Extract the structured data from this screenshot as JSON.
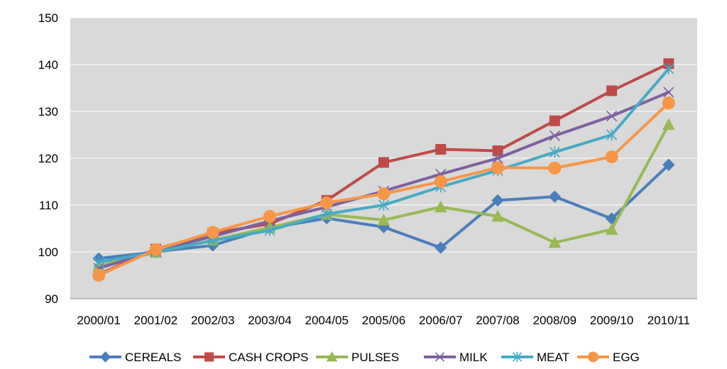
{
  "chart_data": {
    "type": "line",
    "title": "",
    "xlabel": "",
    "ylabel": "",
    "categories": [
      "2000/01",
      "2001/02",
      "2002/03",
      "2003/04",
      "2004/05",
      "2005/06",
      "2006/07",
      "2007/08",
      "2008/09",
      "2009/10",
      "2010/11"
    ],
    "ylim": [
      90,
      150
    ],
    "yticks": [
      90,
      100,
      110,
      120,
      130,
      140,
      150
    ],
    "grid": true,
    "legend_position": "bottom",
    "series": [
      {
        "name": "CEREALS",
        "color": "#4A7EBB",
        "marker": "diamond",
        "values": [
          98.6,
          100.0,
          101.4,
          105.1,
          107.2,
          105.3,
          100.9,
          111.0,
          111.8,
          107.1,
          118.6
        ]
      },
      {
        "name": "CASH CROPS",
        "color": "#BE4B48",
        "marker": "square",
        "values": [
          95.2,
          100.6,
          104.0,
          106.0,
          111.0,
          119.1,
          121.9,
          121.6,
          128.0,
          134.4,
          140.2
        ]
      },
      {
        "name": "PULSES",
        "color": "#98B954",
        "marker": "triangle",
        "values": [
          97.0,
          99.9,
          102.5,
          105.2,
          108.0,
          106.8,
          109.6,
          107.6,
          102.0,
          104.8,
          127.2
        ]
      },
      {
        "name": "MILK",
        "color": "#7D60A0",
        "marker": "x",
        "values": [
          96.5,
          100.2,
          103.3,
          106.6,
          109.6,
          113.0,
          116.6,
          120.0,
          124.8,
          129.0,
          134.1
        ]
      },
      {
        "name": "MEAT",
        "color": "#46AAC5",
        "marker": "asterisk",
        "values": [
          97.8,
          100.0,
          102.4,
          104.6,
          108.1,
          110.0,
          113.9,
          117.4,
          121.3,
          125.0,
          139.1
        ]
      },
      {
        "name": "EGG",
        "color": "#F79646",
        "marker": "circle",
        "values": [
          95.0,
          100.5,
          104.2,
          107.6,
          110.5,
          112.4,
          115.0,
          118.0,
          117.9,
          120.3,
          131.8
        ]
      }
    ]
  }
}
